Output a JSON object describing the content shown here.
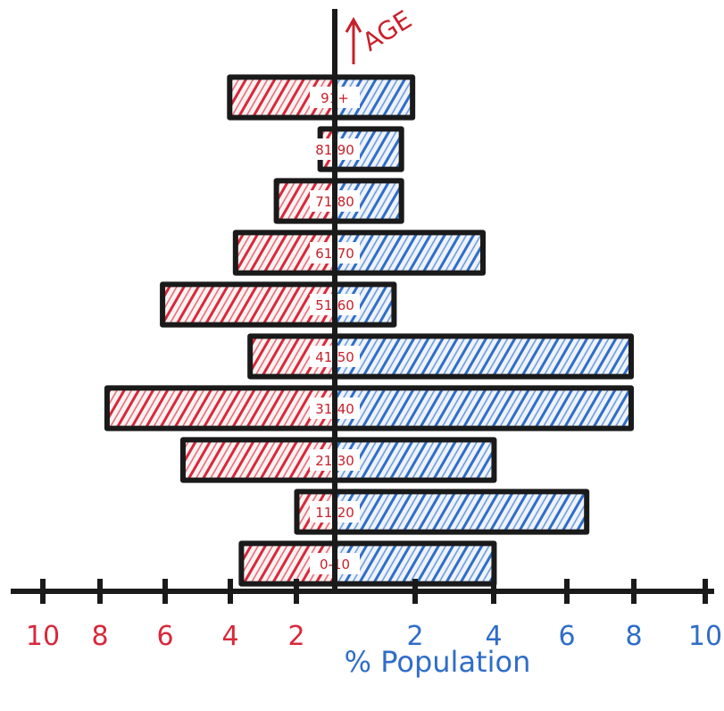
{
  "chart_data": {
    "type": "bar",
    "subtype": "population-pyramid",
    "ylabel": "AGE",
    "xlabel": "% Population",
    "categories": [
      "0-10",
      "11-20",
      "21-30",
      "31-40",
      "41-50",
      "51-60",
      "61-70",
      "71-80",
      "81-90",
      "91+"
    ],
    "series": [
      {
        "side": "left",
        "color": "#d8283b",
        "values": [
          3.2,
          1.3,
          5.2,
          7.8,
          2.9,
          5.9,
          3.4,
          2.0,
          0.5,
          3.6
        ]
      },
      {
        "side": "right",
        "color": "#2f6dc8",
        "values": [
          4.3,
          6.8,
          4.3,
          8.0,
          8.0,
          1.6,
          4.0,
          1.8,
          1.8,
          2.1
        ]
      }
    ],
    "xlim": [
      -10,
      10
    ],
    "left_ticks": [
      10,
      8,
      6,
      4,
      2
    ],
    "right_ticks": [
      2,
      4,
      6,
      8,
      10
    ],
    "grid": false,
    "legend": "none"
  },
  "colors": {
    "female": "#d8283b",
    "male": "#2f6dc8",
    "outline": "#1a1a1a",
    "age_axis_label": "#c8202a"
  }
}
